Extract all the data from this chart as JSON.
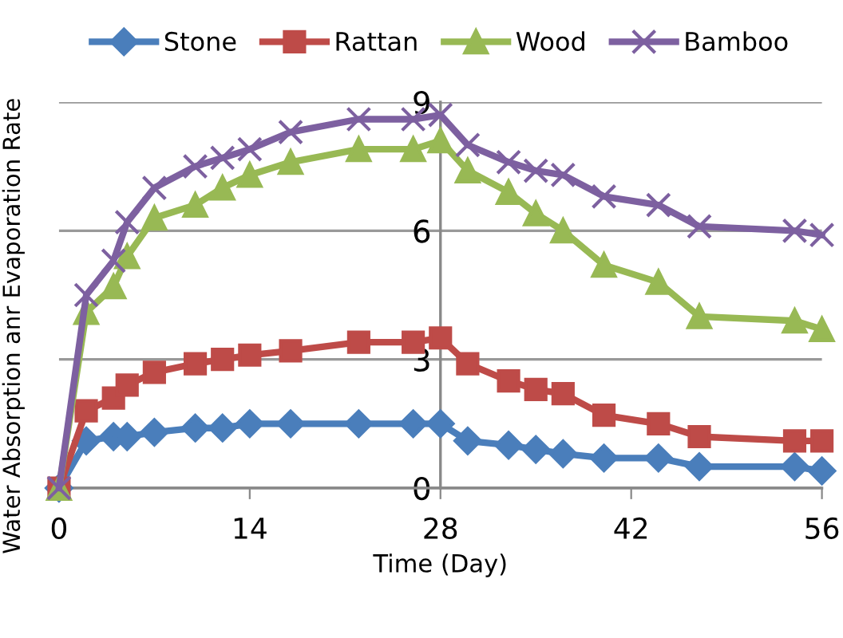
{
  "chart_data": {
    "type": "line",
    "xlabel": "Time (Day)",
    "ylabel": "Water Absorption anr Evaporation Rate",
    "x": [
      0,
      2,
      4,
      5,
      7,
      10,
      12,
      14,
      17,
      22,
      26,
      28,
      30,
      33,
      35,
      37,
      40,
      44,
      47,
      54,
      56
    ],
    "xlim": [
      0,
      56
    ],
    "xticks": [
      0,
      14,
      28,
      42,
      56
    ],
    "ylim": [
      0,
      9
    ],
    "yticks": [
      0,
      3,
      6,
      9
    ],
    "grid": "y",
    "legend": "top",
    "series": [
      {
        "name": "Stone",
        "color": "#4a7ebb",
        "marker": "diamond",
        "values": [
          0,
          1.1,
          1.2,
          1.2,
          1.3,
          1.4,
          1.4,
          1.5,
          1.5,
          1.5,
          1.5,
          1.5,
          1.1,
          1.0,
          0.9,
          0.8,
          0.7,
          0.7,
          0.5,
          0.5,
          0.4
        ]
      },
      {
        "name": "Rattan",
        "color": "#be4b48",
        "marker": "square",
        "values": [
          0,
          1.8,
          2.1,
          2.4,
          2.7,
          2.9,
          3.0,
          3.1,
          3.2,
          3.4,
          3.4,
          3.5,
          2.9,
          2.5,
          2.3,
          2.2,
          1.7,
          1.5,
          1.2,
          1.1,
          1.1
        ]
      },
      {
        "name": "Wood",
        "color": "#98b954",
        "marker": "triangle",
        "values": [
          0,
          4.1,
          4.7,
          5.4,
          6.3,
          6.6,
          7.0,
          7.3,
          7.6,
          7.9,
          7.9,
          8.1,
          7.4,
          6.9,
          6.4,
          6.0,
          5.2,
          4.8,
          4.0,
          3.9,
          3.7
        ]
      },
      {
        "name": "Bamboo",
        "color": "#7d60a0",
        "marker": "cross",
        "values": [
          0,
          4.5,
          5.3,
          6.2,
          7.0,
          7.5,
          7.7,
          7.9,
          8.3,
          8.6,
          8.6,
          8.7,
          8.0,
          7.6,
          7.4,
          7.3,
          6.8,
          6.6,
          6.1,
          6.0,
          5.9
        ]
      }
    ]
  }
}
